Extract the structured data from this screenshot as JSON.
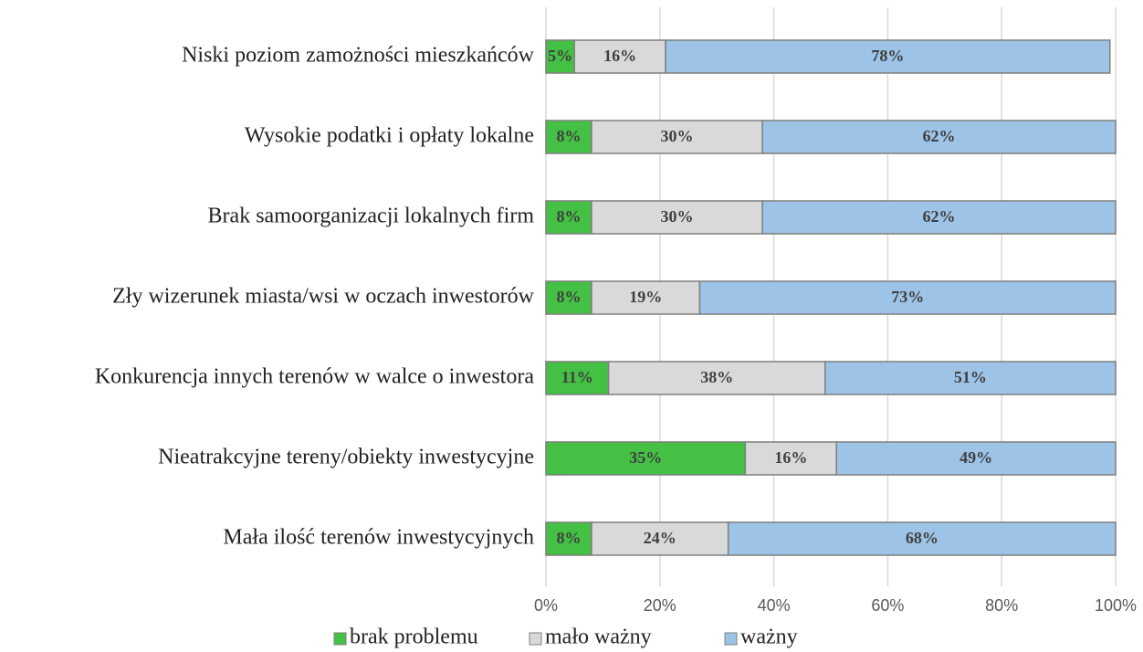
{
  "chart_data": {
    "type": "stacked_barh",
    "categories": [
      "Niski poziom zamożności mieszkańców",
      "Wysokie podatki i opłaty lokalne",
      "Brak samoorganizacji lokalnych firm",
      "Zły wizerunek miasta/wsi w oczach inwestorów",
      "Konkurencja innych terenów w walce o inwestora",
      "Nieatrakcyjne tereny/obiekty inwestycyjne",
      "Mała ilość terenów inwestycyjnych"
    ],
    "series": [
      {
        "name": "brak problemu",
        "color": "#44c044",
        "values": [
          5,
          8,
          8,
          8,
          11,
          35,
          8
        ],
        "value_labels": [
          "5%",
          "8%",
          "8%",
          "8%",
          "11%",
          "35%",
          "8%"
        ]
      },
      {
        "name": "mało ważny",
        "color": "#d9d9d9",
        "values": [
          16,
          30,
          30,
          19,
          38,
          16,
          24
        ],
        "value_labels": [
          "16%",
          "30%",
          "30%",
          "19%",
          "38%",
          "16%",
          "24%"
        ]
      },
      {
        "name": "ważny",
        "color": "#9dc3e6",
        "values": [
          78,
          62,
          62,
          73,
          51,
          49,
          68
        ],
        "value_labels": [
          "78%",
          "62%",
          "62%",
          "73%",
          "51%",
          "49%",
          "68%"
        ]
      }
    ],
    "xlim": [
      0,
      100
    ],
    "xticks": [
      {
        "value": 0,
        "label": "0%"
      },
      {
        "value": 20,
        "label": "20%"
      },
      {
        "value": 40,
        "label": "40%"
      },
      {
        "value": 60,
        "label": "60%"
      },
      {
        "value": 80,
        "label": "80%"
      },
      {
        "value": 100,
        "label": "100%"
      }
    ],
    "grid": true,
    "legend": "bottom"
  }
}
